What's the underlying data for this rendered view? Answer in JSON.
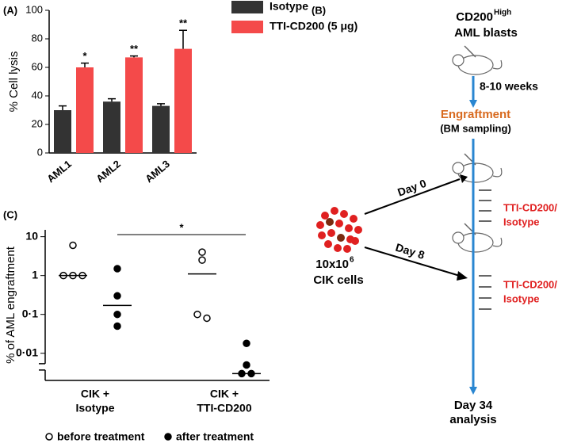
{
  "chart_data": [
    {
      "type": "bar",
      "panel_label": "(A)",
      "y_label": "% Cell lysis",
      "categories": [
        "AML1",
        "AML2",
        "AML3"
      ],
      "series": [
        {
          "name": "Isotype",
          "color": "#333333",
          "values": [
            30,
            36,
            33
          ],
          "errors": [
            3,
            2,
            1.5
          ]
        },
        {
          "name": "TTI-CD200 (5 μg)",
          "color": "#f44a4a",
          "values": [
            60,
            67,
            73
          ],
          "errors": [
            3,
            1,
            13
          ]
        }
      ],
      "annotations": [
        "*",
        "**",
        "**"
      ],
      "ylim": [
        0,
        100
      ],
      "yticks": [
        0,
        20,
        40,
        60,
        80,
        100
      ]
    },
    {
      "type": "scatter",
      "panel_label": "(C)",
      "y_label": "% of AML engraftment",
      "log_y": true,
      "categories": [
        [
          "CIK +",
          "Isotype"
        ],
        [
          "CIK +",
          "TTI-CD200"
        ]
      ],
      "series": [
        {
          "name": "before treatment",
          "filled": false,
          "color": "#000000",
          "values": [
            [
              6,
              1,
              1,
              1
            ],
            [
              4,
              2.5,
              0.1,
              0.08
            ]
          ],
          "medians": [
            1,
            1.1
          ]
        },
        {
          "name": "after treatment",
          "filled": true,
          "color": "#000000",
          "values": [
            [
              1.5,
              0.3,
              0.1,
              0.05
            ],
            [
              0.018,
              0.005,
              0.003,
              0.003
            ]
          ],
          "medians": [
            0.17,
            0.003
          ]
        }
      ],
      "significance": "*",
      "ylim": [
        0.002,
        15
      ],
      "yticks": [
        {
          "value": 0.01,
          "label": "0·01"
        },
        {
          "value": 0.1,
          "label": "0·1"
        },
        1,
        10
      ]
    }
  ],
  "diagram": {
    "panel_label": "(B)",
    "source": "CD200",
    "source_sup": "High",
    "source_line2": "AML blasts",
    "interval": "8-10 weeks",
    "engraftment": "Engraftment",
    "sampling": "(BM sampling)",
    "day0": "Day 0",
    "day8": "Day 8",
    "treatment1": [
      "TTI-CD200/",
      "Isotype"
    ],
    "treatment2": [
      "TTI-CD200/",
      "Isotype"
    ],
    "cells_count": "10x10",
    "cells_exp": "6",
    "cells": "CIK cells",
    "end": [
      "Day 34",
      "analysis"
    ]
  }
}
